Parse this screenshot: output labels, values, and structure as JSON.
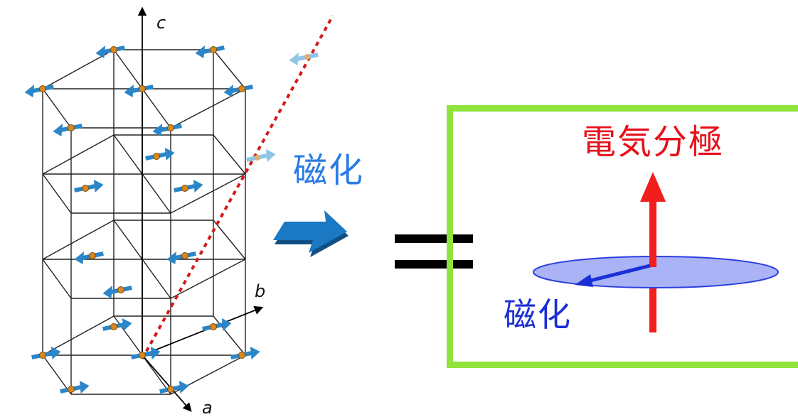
{
  "diagram": {
    "axis_labels": {
      "a": "a",
      "b": "b",
      "c": "c"
    },
    "magnetization_label": "磁化",
    "right_panel": {
      "polarization_label": "電気分極",
      "spin_label": "磁化"
    },
    "colors": {
      "spin_arrow": "#2a86c8",
      "spin_arrow_faded": "#8ec5e6",
      "atom": "#d9891c",
      "dashed_line": "#d41a1a",
      "big_arrow": "#1b78c2",
      "frame": "#8fe33a",
      "polarization_arrow": "#f21d1d",
      "disc_fill": "#aab3f5",
      "disc_stroke": "#2c3fe0",
      "spin_vector": "#1a2fd6"
    }
  }
}
